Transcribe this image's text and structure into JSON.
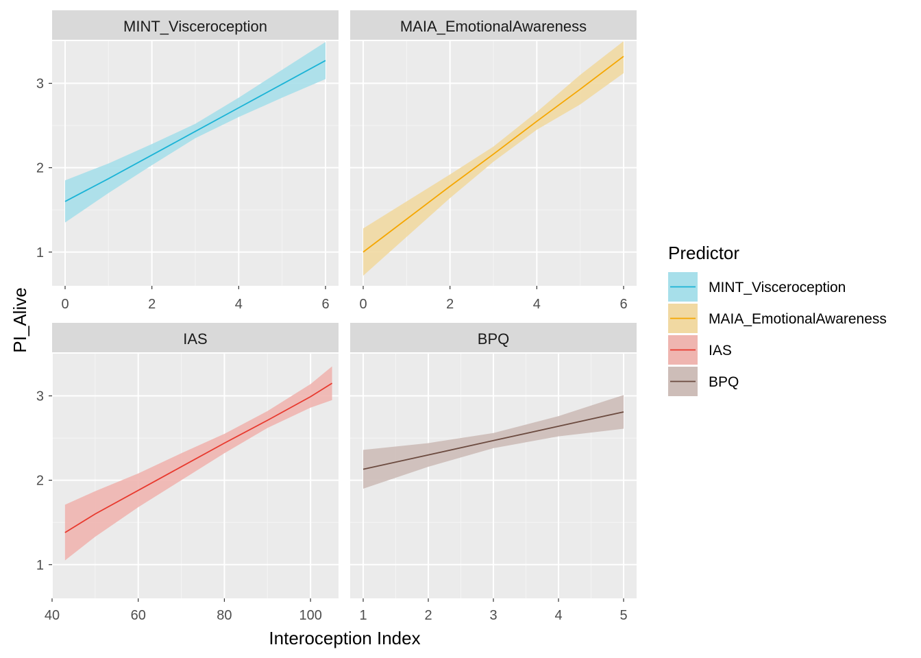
{
  "chart_data": {
    "type": "line",
    "xlabel": "Interoception Index",
    "ylabel": "PI_Alive",
    "ylim": [
      0.6,
      3.5
    ],
    "yticks": [
      1,
      2,
      3
    ],
    "grid": true,
    "legend": {
      "title": "Predictor",
      "placement": "right",
      "items": [
        {
          "label": "MINT_Visceroception",
          "color": "#1ab3d6"
        },
        {
          "label": "MAIA_EmotionalAwareness",
          "color": "#f5a600"
        },
        {
          "label": "IAS",
          "color": "#e8392e"
        },
        {
          "label": "BPQ",
          "color": "#6b4a3f"
        }
      ]
    },
    "panels": [
      {
        "title": "MINT_Visceroception",
        "color": "#1ab3d6",
        "fill": "#a7dfea",
        "xlim": [
          -0.3,
          6.3
        ],
        "xticks": [
          0,
          2,
          4,
          6
        ],
        "x": [
          0,
          1,
          2,
          3,
          4,
          5,
          6
        ],
        "y": [
          1.6,
          1.87,
          2.15,
          2.43,
          2.71,
          2.99,
          3.27
        ],
        "ylow": [
          1.35,
          1.7,
          2.03,
          2.35,
          2.6,
          2.83,
          3.05
        ],
        "yhigh": [
          1.85,
          2.05,
          2.28,
          2.52,
          2.83,
          3.16,
          3.49
        ]
      },
      {
        "title": "MAIA_EmotionalAwareness",
        "color": "#f5a600",
        "fill": "#f1d9a2",
        "xlim": [
          -0.3,
          6.3
        ],
        "xticks": [
          0,
          2,
          4,
          6
        ],
        "x": [
          0,
          1,
          2,
          3,
          4,
          5,
          6
        ],
        "y": [
          1.0,
          1.39,
          1.78,
          2.16,
          2.55,
          2.93,
          3.32
        ],
        "ylow": [
          0.72,
          1.18,
          1.64,
          2.07,
          2.45,
          2.75,
          3.12
        ],
        "yhigh": [
          1.28,
          1.6,
          1.92,
          2.25,
          2.66,
          3.1,
          3.5
        ]
      },
      {
        "title": "IAS",
        "color": "#e8392e",
        "fill": "#efb5b0",
        "xlim": [
          40,
          106.5
        ],
        "xticks": [
          40,
          60,
          80,
          100
        ],
        "x": [
          43,
          50,
          60,
          70,
          80,
          90,
          100,
          105
        ],
        "y": [
          1.38,
          1.6,
          1.88,
          2.16,
          2.44,
          2.71,
          2.99,
          3.15
        ],
        "ylow": [
          1.05,
          1.33,
          1.68,
          2.0,
          2.32,
          2.62,
          2.86,
          2.95
        ],
        "yhigh": [
          1.71,
          1.87,
          2.08,
          2.32,
          2.55,
          2.82,
          3.14,
          3.35
        ]
      },
      {
        "title": "BPQ",
        "color": "#6b4a3f",
        "fill": "#cdbdb8",
        "xlim": [
          0.8,
          5.2
        ],
        "xticks": [
          1,
          2,
          3,
          4,
          5
        ],
        "x": [
          1,
          2,
          3,
          4,
          5
        ],
        "y": [
          2.13,
          2.3,
          2.47,
          2.64,
          2.81
        ],
        "ylow": [
          1.9,
          2.16,
          2.38,
          2.52,
          2.61
        ],
        "yhigh": [
          2.36,
          2.44,
          2.56,
          2.76,
          3.01
        ]
      }
    ]
  }
}
